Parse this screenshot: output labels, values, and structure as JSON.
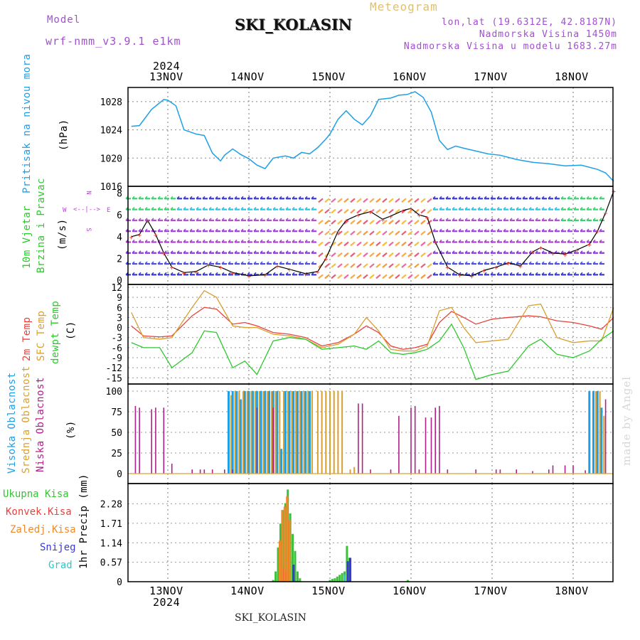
{
  "header": {
    "model_label": "Model",
    "model_name": "wrf-nmm_v3.9.1 e1km",
    "station": "SKI_KOLASIN",
    "meteogram_label": "Meteogram",
    "lonlat": "lon,lat (19.6312E, 42.8187N)",
    "altitude": "Nadmorska Visina 1450m",
    "model_altitude": "Nadmorska Visina u modelu 1683.27m",
    "footer_station": "SKI_KOLASIN",
    "watermark": "made by Angel"
  },
  "date_axis": {
    "year": "2024",
    "days": [
      "13NOV",
      "14NOV",
      "15NOV",
      "16NOV",
      "17NOV",
      "18NOV"
    ]
  },
  "colors": {
    "pressure": "#1e9fe6",
    "temp2m": "#e8423c",
    "sfctemp": "#d9a030",
    "dewpt": "#2ec82e",
    "high_cloud": "#1e9fe6",
    "mid_cloud": "#d9a030",
    "low_cloud": "#b0208a",
    "total_precip": "#3cbf3c",
    "conv_precip": "#e8423c",
    "frozen_precip": "#ef8a2a",
    "snow": "#3a3ad0",
    "graupel": "#2ec8c8",
    "wind_label": "#2ec82e",
    "compass": "#c040e0"
  },
  "panels": {
    "pressure": {
      "labels": [
        "Pritisak na nivou mora"
      ],
      "unit": "(hPa)",
      "ticks": [
        "1016",
        "1020",
        "1024",
        "1028"
      ]
    },
    "wind": {
      "labels": [
        "10m Vjetar",
        "Brzina i Pravac"
      ],
      "unit": "(m/s)",
      "ticks": [
        "0",
        "2",
        "4",
        "6",
        "8"
      ],
      "compass": {
        "n": "N",
        "s": "S",
        "e": "E",
        "w": "W",
        "arrows": "<--|-->"
      }
    },
    "temp": {
      "labels": [
        "2m Temp",
        "SFC Temp",
        "dewpt Temp"
      ],
      "unit": "(C)",
      "ticks": [
        "-15",
        "-12",
        "-9",
        "-6",
        "-3",
        "0",
        "3",
        "6",
        "9",
        "12"
      ]
    },
    "cloud": {
      "labels": [
        "Visoka Oblacnost",
        "Srednja Oblacnost",
        "Niska Oblacnost"
      ],
      "unit": "(%)",
      "ticks": [
        "0",
        "25",
        "50",
        "75",
        "100"
      ]
    },
    "precip": {
      "labels": [
        "Ukupna Kisa",
        "Konvek.Kisa",
        "Zaledj.Kisa",
        "Snijeg",
        "Grad"
      ],
      "axis_label": "1hr Precip (mm)",
      "ticks": [
        "0",
        "0.57",
        "1.14",
        "1.71",
        "2.28"
      ]
    }
  },
  "chart_data": [
    {
      "type": "line",
      "title": "",
      "ylabel": "Pritisak na nivou mora (hPa)",
      "ylim": [
        1016,
        1030
      ],
      "x_days": [
        12.6,
        13.6,
        14.6,
        15.6,
        16.6,
        17.6,
        18.6
      ],
      "x": [
        12.55,
        12.65,
        12.8,
        12.95,
        13.0,
        13.1,
        13.2,
        13.35,
        13.45,
        13.55,
        13.65,
        13.7,
        13.8,
        13.9,
        14.0,
        14.1,
        14.2,
        14.3,
        14.45,
        14.55,
        14.65,
        14.75,
        14.85,
        14.95,
        15.0,
        15.1,
        15.2,
        15.3,
        15.4,
        15.5,
        15.6,
        15.75,
        15.85,
        15.95,
        16.05,
        16.15,
        16.25,
        16.35,
        16.45,
        16.55,
        16.65,
        16.8,
        16.95,
        17.1,
        17.3,
        17.5,
        17.7,
        17.9,
        18.1,
        18.3,
        18.4,
        18.5
      ],
      "values": [
        1024.5,
        1024.6,
        1026.9,
        1028.3,
        1028.2,
        1027.4,
        1024.0,
        1023.4,
        1023.2,
        1020.7,
        1019.6,
        1020.4,
        1021.3,
        1020.5,
        1019.9,
        1019.0,
        1018.5,
        1020.0,
        1020.3,
        1020.0,
        1020.8,
        1020.6,
        1021.5,
        1022.7,
        1023.4,
        1025.5,
        1026.7,
        1025.5,
        1024.7,
        1026.0,
        1028.3,
        1028.5,
        1028.9,
        1029.0,
        1029.4,
        1028.6,
        1026.5,
        1022.5,
        1021.2,
        1021.7,
        1021.4,
        1021.0,
        1020.6,
        1020.4,
        1019.8,
        1019.4,
        1019.2,
        1018.9,
        1019.0,
        1018.4,
        1017.9,
        1016.7
      ],
      "series": [
        {
          "name": "Pritisak na nivou mora",
          "values": "see values"
        }
      ]
    },
    {
      "type": "line",
      "title": "",
      "ylabel": "10m Vjetar Brzina i Pravac (m/s)",
      "ylim": [
        0,
        8.5
      ],
      "x": [
        12.55,
        12.65,
        12.75,
        12.85,
        12.95,
        13.05,
        13.2,
        13.35,
        13.5,
        13.65,
        13.8,
        14.0,
        14.2,
        14.35,
        14.5,
        14.7,
        14.85,
        14.95,
        15.1,
        15.2,
        15.35,
        15.5,
        15.65,
        15.75,
        15.9,
        16.0,
        16.1,
        16.2,
        16.3,
        16.45,
        16.6,
        16.75,
        16.9,
        17.05,
        17.2,
        17.35,
        17.5,
        17.6,
        17.75,
        17.9,
        18.05,
        18.2,
        18.3,
        18.4,
        18.5
      ],
      "values": [
        4.0,
        4.2,
        5.5,
        4.2,
        2.5,
        1.2,
        0.7,
        0.8,
        1.4,
        1.2,
        0.7,
        0.4,
        0.5,
        1.3,
        1.0,
        0.6,
        0.8,
        2.0,
        4.5,
        5.5,
        6.0,
        6.3,
        5.6,
        5.9,
        6.4,
        6.6,
        6.0,
        5.8,
        3.5,
        1.2,
        0.5,
        0.4,
        0.9,
        1.2,
        1.6,
        1.3,
        2.6,
        3.0,
        2.5,
        2.4,
        2.8,
        3.3,
        4.5,
        6.2,
        8.2
      ],
      "series": [
        {
          "name": "Brzina",
          "values": "see values"
        }
      ]
    },
    {
      "type": "line",
      "title": "",
      "ylabel": "(C)",
      "ylim": [
        -16,
        12
      ],
      "x": [
        12.55,
        12.7,
        12.9,
        13.05,
        13.3,
        13.45,
        13.6,
        13.8,
        13.95,
        14.1,
        14.3,
        14.5,
        14.7,
        14.9,
        15.1,
        15.3,
        15.45,
        15.6,
        15.75,
        15.9,
        16.05,
        16.2,
        16.35,
        16.5,
        16.65,
        16.8,
        17.0,
        17.2,
        17.45,
        17.6,
        17.8,
        18.0,
        18.2,
        18.35,
        18.5
      ],
      "series": [
        {
          "name": "2m Temp",
          "values": [
            0.5,
            -2.5,
            -2.8,
            -2.5,
            3.5,
            6.0,
            5.5,
            1.0,
            1.5,
            0.5,
            -1.5,
            -2.0,
            -3.0,
            -5.5,
            -4.5,
            -2.0,
            0.5,
            -1.5,
            -5.5,
            -6.5,
            -6.0,
            -5.0,
            1.5,
            4.8,
            3.0,
            1.0,
            2.5,
            3.0,
            3.5,
            3.2,
            2.0,
            1.5,
            0.5,
            -0.5,
            3.0
          ]
        },
        {
          "name": "SFC Temp",
          "values": [
            4.5,
            -3.0,
            -3.5,
            -3.0,
            6.0,
            11.0,
            9.0,
            0.5,
            0.0,
            0.0,
            -2.0,
            -2.5,
            -3.5,
            -6.0,
            -5.0,
            -2.0,
            3.0,
            -1.0,
            -6.5,
            -7.0,
            -7.0,
            -5.5,
            5.0,
            6.0,
            0.0,
            -4.5,
            -4.0,
            -3.5,
            6.5,
            7.0,
            -3.0,
            -4.5,
            -4.0,
            -4.0,
            6.0
          ]
        },
        {
          "name": "dewpt Temp",
          "values": [
            -4.5,
            -6.0,
            -6.0,
            -12.0,
            -7.5,
            -1.0,
            -1.5,
            -12.0,
            -10.0,
            -14.0,
            -4.0,
            -3.0,
            -3.5,
            -6.5,
            -6.0,
            -5.5,
            -6.5,
            -4.0,
            -7.5,
            -8.0,
            -7.5,
            -6.5,
            -4.0,
            1.0,
            -6.0,
            -15.5,
            -14.0,
            -13.0,
            -5.5,
            -3.5,
            -8.0,
            -9.0,
            -7.0,
            -3.5,
            -1.0
          ]
        }
      ]
    },
    {
      "type": "bar",
      "title": "",
      "ylabel": "(%)",
      "ylim": [
        0,
        100
      ],
      "series": [
        {
          "name": "Visoka Oblacnost",
          "x": [
            13.75,
            13.8,
            13.85,
            13.9,
            13.95,
            14.0,
            14.05,
            14.1,
            14.15,
            14.2,
            14.25,
            14.3,
            14.35,
            14.4,
            14.45,
            14.5,
            14.55,
            14.6,
            14.65,
            14.7,
            14.75,
            18.2,
            18.25,
            18.3,
            18.35
          ],
          "values": [
            100,
            100,
            100,
            90,
            100,
            100,
            100,
            100,
            100,
            100,
            100,
            100,
            100,
            30,
            100,
            100,
            100,
            100,
            100,
            100,
            100,
            100,
            100,
            100,
            80
          ]
        },
        {
          "name": "Srednja Oblacnost",
          "x": [
            13.78,
            13.83,
            13.88,
            13.93,
            13.98,
            14.03,
            14.08,
            14.13,
            14.18,
            14.23,
            14.28,
            14.33,
            14.38,
            14.43,
            14.48,
            14.53,
            14.58,
            14.63,
            14.68,
            14.73,
            14.78,
            14.85,
            14.9,
            14.95,
            15.0,
            15.05,
            15.1,
            15.15,
            15.25,
            15.3,
            18.28,
            18.33,
            18.38
          ],
          "values": [
            95,
            100,
            100,
            100,
            100,
            100,
            100,
            100,
            100,
            100,
            100,
            100,
            100,
            100,
            100,
            100,
            100,
            100,
            100,
            100,
            100,
            100,
            100,
            100,
            100,
            100,
            100,
            100,
            5,
            8,
            100,
            100,
            70
          ]
        },
        {
          "name": "Niska Oblacnost",
          "x": [
            12.6,
            12.65,
            12.8,
            12.85,
            12.95,
            13.05,
            13.3,
            13.4,
            13.45,
            13.55,
            13.7,
            13.8,
            14.1,
            14.3,
            15.35,
            15.4,
            15.5,
            15.75,
            15.85,
            16.0,
            16.05,
            16.1,
            16.18,
            16.25,
            16.3,
            16.35,
            16.45,
            16.8,
            17.05,
            17.1,
            17.3,
            17.5,
            17.7,
            17.75,
            17.9,
            18.0,
            18.15,
            18.4
          ],
          "values": [
            82,
            80,
            78,
            80,
            80,
            12,
            5,
            5,
            5,
            5,
            5,
            5,
            80,
            80,
            85,
            85,
            5,
            5,
            70,
            80,
            82,
            5,
            68,
            68,
            80,
            82,
            5,
            5,
            5,
            5,
            5,
            3,
            5,
            10,
            10,
            10,
            4,
            90
          ]
        }
      ]
    },
    {
      "type": "bar",
      "title": "",
      "ylabel": "1hr Precip (mm)",
      "ylim": [
        0,
        2.75
      ],
      "series": [
        {
          "name": "Ukupna Kisa",
          "x": [
            14.3,
            14.33,
            14.36,
            14.39,
            14.42,
            14.45,
            14.48,
            14.51,
            14.54,
            14.57,
            14.6,
            14.63,
            15.0,
            15.03,
            15.06,
            15.09,
            15.12,
            15.15,
            15.18,
            15.21,
            15.24,
            15.96
          ],
          "values": [
            0.05,
            0.3,
            1.0,
            1.7,
            2.1,
            2.3,
            2.7,
            2.0,
            1.4,
            0.9,
            0.3,
            0.1,
            0.05,
            0.08,
            0.1,
            0.15,
            0.2,
            0.25,
            0.3,
            1.05,
            0.7,
            0.05
          ]
        },
        {
          "name": "Konvek.Kisa",
          "x": [
            14.42,
            14.45
          ],
          "values": [
            0.4,
            0.3
          ]
        },
        {
          "name": "Zaledj.Kisa",
          "x": [
            14.39,
            14.42,
            14.45,
            14.48,
            14.51
          ],
          "values": [
            1.2,
            2.1,
            2.2,
            2.5,
            1.8
          ]
        },
        {
          "name": "Snijeg",
          "x": [
            14.54,
            15.21,
            15.24
          ],
          "values": [
            0.5,
            0.6,
            0.7
          ]
        },
        {
          "name": "Grad",
          "x": [
            15.18
          ],
          "values": [
            0.2
          ]
        }
      ]
    }
  ]
}
